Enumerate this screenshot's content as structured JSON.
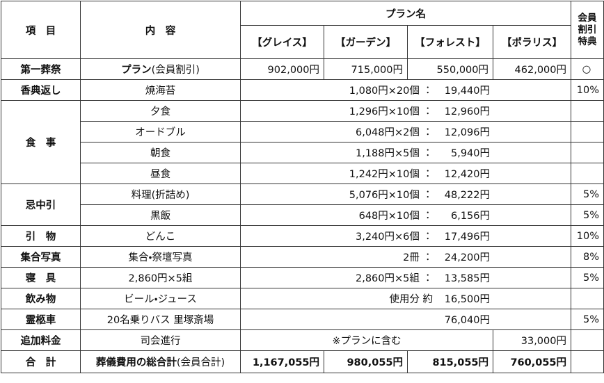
{
  "header": {
    "item": "項　目",
    "content": "内　容",
    "plan_name": "プラン名",
    "member": [
      "会員",
      "割引",
      "特典"
    ],
    "plans": [
      "【グレイス】",
      "【ガーデン】",
      "【フォレスト】",
      "【ポラリス】"
    ]
  },
  "sections": [
    {
      "item": "第一葬祭",
      "lines": [
        {
          "content_bold": "プラン",
          "content_note": "(会員割引)",
          "prices": [
            "902,000円",
            "715,000円",
            "550,000円",
            "462,000円"
          ],
          "member": "○"
        }
      ]
    },
    {
      "item": "香典返し",
      "lines": [
        {
          "content": "焼海苔",
          "amount": "1,080円×20個 ：",
          "total": "19,440円",
          "member": "10%"
        }
      ]
    },
    {
      "item": "食　事",
      "lines": [
        {
          "content": "夕食",
          "amount": "1,296円×10個 ：",
          "total": "12,960円"
        },
        {
          "content": "オードブル",
          "amount": "6,048円×2個 ：",
          "total": "12,096円"
        },
        {
          "content": "朝食",
          "amount": "1,188円×5個 ：",
          "total": "5,940円"
        },
        {
          "content": "昼食",
          "amount": "1,242円×10個 ：",
          "total": "12,420円"
        }
      ]
    },
    {
      "item": "忌中引",
      "lines": [
        {
          "content": "料理(折詰め)",
          "amount": "5,076円×10個 ：",
          "total": "48,222円",
          "member": "5%"
        },
        {
          "content": "黒飯",
          "amount": "648円×10個 ：",
          "total": "6,156円",
          "member": "5%"
        }
      ]
    },
    {
      "item": "引　物",
      "lines": [
        {
          "content": "どんこ",
          "amount": "3,240円×6個 ：",
          "total": "17,496円",
          "member": "10%"
        }
      ]
    },
    {
      "item": "集合写真",
      "lines": [
        {
          "content": "集合・祭壇写真",
          "amount": "2冊 ：",
          "total": "24,200円",
          "member": "8%"
        }
      ]
    },
    {
      "item": "寝　具",
      "lines": [
        {
          "content": "2,860円×5組",
          "amount": "2,860円×5組 ：",
          "total": "13,585円",
          "member": "5%"
        }
      ]
    },
    {
      "item": "飲み物",
      "lines": [
        {
          "content": "ビール・ジュース",
          "amount": "使用分 約",
          "total": "16,500円"
        }
      ]
    },
    {
      "item": "霊柩車",
      "lines": [
        {
          "content": "20名乗りバス 里塚斎場",
          "total": "76,040円",
          "member": "5%"
        }
      ]
    },
    {
      "item": "追加料金",
      "lines": [
        {
          "content": "司会進行",
          "included": "※プランに含む",
          "polaris": "33,000円"
        }
      ]
    },
    {
      "item": "合　計",
      "lines": [
        {
          "content_bold": "葬儀費用の総合計",
          "content_note": "(会員合計)",
          "prices": [
            "1,167,055円",
            "980,055円",
            "815,055円",
            "760,055円"
          ]
        }
      ]
    }
  ]
}
